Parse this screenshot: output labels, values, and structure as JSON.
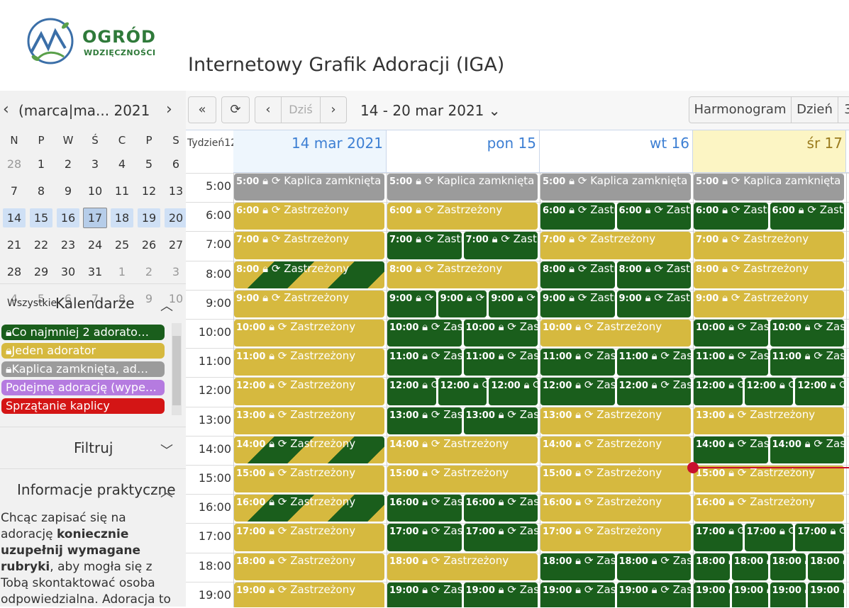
{
  "header": {
    "logo_line1": "OGRÓD",
    "logo_line2": "WDZIĘCZNOŚCI",
    "title": "Internetowy Grafik Adoracji (IGA)"
  },
  "mini_calendar": {
    "title": "(marca|ma... 2021",
    "weekdays": [
      "N",
      "P",
      "W",
      "Ś",
      "C",
      "P",
      "S"
    ],
    "weeks": [
      [
        "28",
        "1",
        "2",
        "3",
        "4",
        "5",
        "6"
      ],
      [
        "7",
        "8",
        "9",
        "10",
        "11",
        "12",
        "13"
      ],
      [
        "14",
        "15",
        "16",
        "17",
        "18",
        "19",
        "20"
      ],
      [
        "21",
        "22",
        "23",
        "24",
        "25",
        "26",
        "27"
      ],
      [
        "28",
        "29",
        "30",
        "31",
        "1",
        "2",
        "3"
      ],
      [
        "4",
        "5",
        "6",
        "7",
        "8",
        "9",
        "10"
      ]
    ]
  },
  "calendars": {
    "all_label": "Wszystkie",
    "title": "Kalendarze",
    "items": [
      {
        "label": "Co najmniej 2 adorato…",
        "color": "#1a5e1c",
        "icon": "lock-icon"
      },
      {
        "label": "Jeden adorator",
        "color": "#d6b93f",
        "icon": "lock-icon"
      },
      {
        "label": "Kaplica zamknięta, ad…",
        "color": "#9b9b9b",
        "icon": "lock-icon"
      },
      {
        "label": "Podejmę adorację (wype…",
        "color": "#b57be0",
        "icon": ""
      },
      {
        "label": "Sprzątanie kaplicy",
        "color": "#d41515",
        "icon": ""
      }
    ]
  },
  "filter": {
    "title": "Filtruj"
  },
  "info": {
    "title": "Informacje praktyczne",
    "text1": "Chcąc zapisać się na adorację ",
    "text_bold": "koniecznie uzupełnij wymagane rubryki",
    "text2": ", aby mogła się z Tobą skontaktować osoba odpowiedzialna. Adoracja to"
  },
  "toolbar": {
    "prev_range": "«",
    "refresh": "⟳",
    "prev": "‹",
    "today": "Dziś",
    "next": "›",
    "range": "14 - 20 mar 2021",
    "view_schedule": "Harmonogram",
    "view_day": "Dzień",
    "view_more": "3"
  },
  "grid": {
    "week_label": "Tydzień12",
    "columns": [
      "14 mar 2021",
      "pon 15",
      "wt 16",
      "śr 17"
    ],
    "hours": [
      "5:00",
      "6:00",
      "7:00",
      "8:00",
      "9:00",
      "10:00",
      "11:00",
      "12:00",
      "13:00",
      "14:00",
      "15:00",
      "16:00",
      "17:00",
      "18:00",
      "19:00"
    ],
    "closed_label": "Kaplica zamknięta",
    "event_label": "Zastrzeżony"
  },
  "colors": {
    "one_adorator": "#d6b93f",
    "two_adorators": "#1a5e1c",
    "closed": "#9b9b9b",
    "now": "#c8102e"
  }
}
